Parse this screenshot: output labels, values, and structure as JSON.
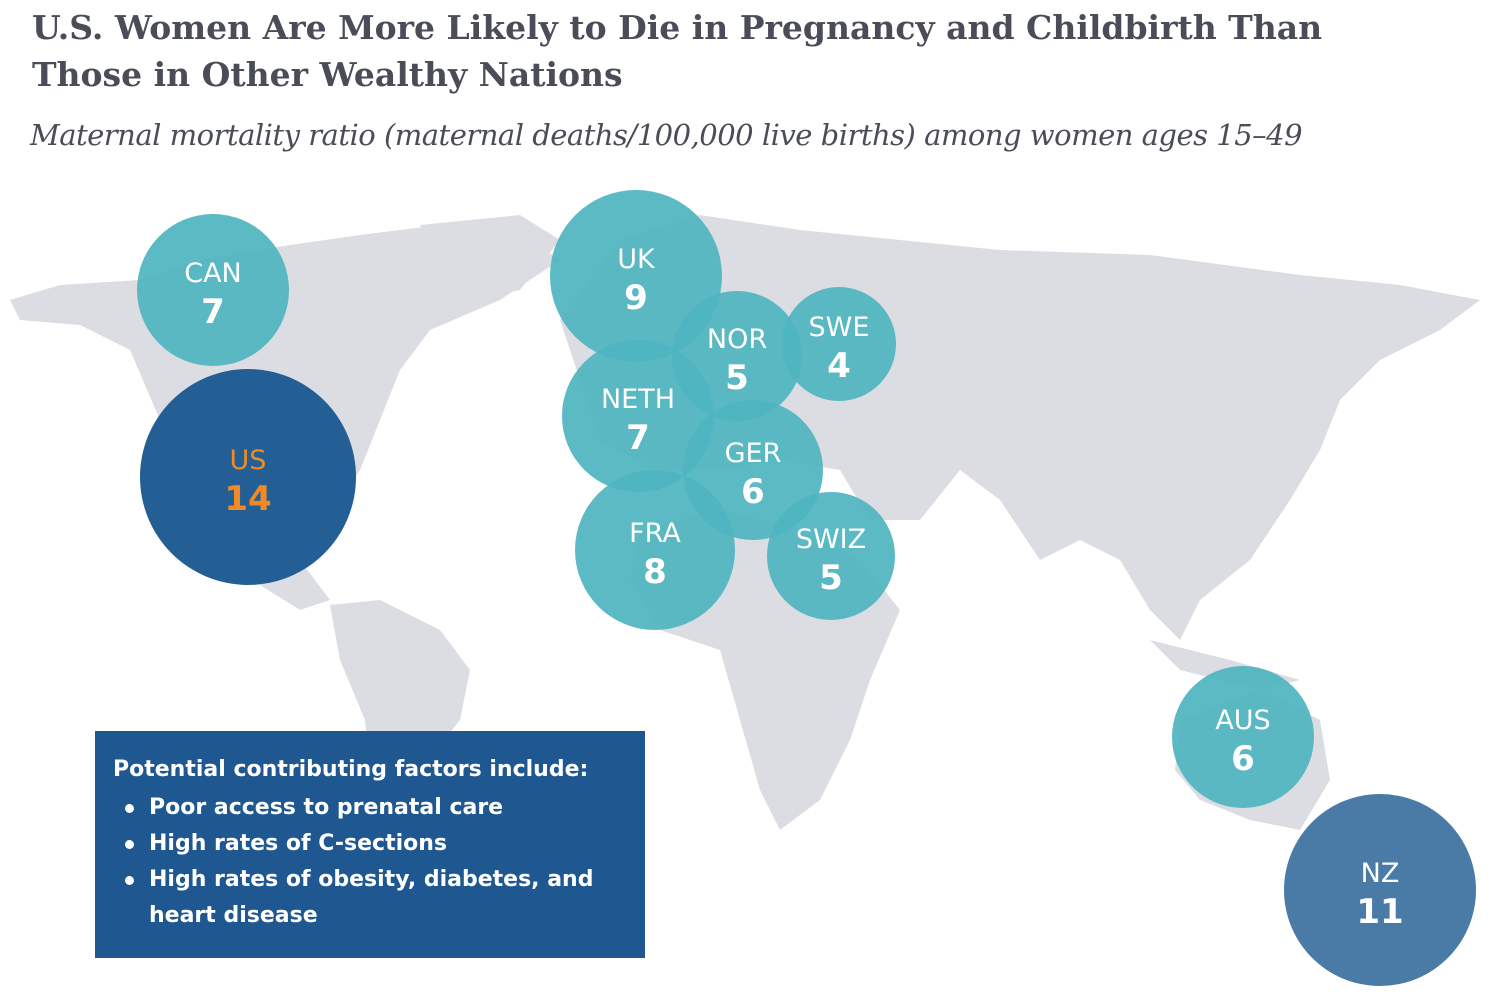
{
  "title": "U.S. Women Are More Likely to Die in Pregnancy and Childbirth Than Those in Other Wealthy Nations",
  "subtitle": "Maternal mortality ratio (maternal deaths/100,000 live births) among women ages 15–49",
  "colors": {
    "us": "#1f5c92",
    "nz": "#3c71a0",
    "others": "#4fb5c0",
    "us_text": "#f08a24",
    "map": "#dcdde3",
    "factors_box": "#1f5790"
  },
  "chart_data": {
    "type": "bubble-map",
    "title": "U.S. Women Are More Likely to Die in Pregnancy and Childbirth Than Those in Other Wealthy Nations",
    "subtitle": "Maternal mortality ratio (maternal deaths/100,000 live births) among women ages 15–49",
    "points": [
      {
        "label": "CAN",
        "value": 7
      },
      {
        "label": "US",
        "value": 14
      },
      {
        "label": "UK",
        "value": 9
      },
      {
        "label": "NOR",
        "value": 5
      },
      {
        "label": "SWE",
        "value": 4
      },
      {
        "label": "NETH",
        "value": 7
      },
      {
        "label": "GER",
        "value": 6
      },
      {
        "label": "FRA",
        "value": 8
      },
      {
        "label": "SWIZ",
        "value": 5
      },
      {
        "label": "AUS",
        "value": 6
      },
      {
        "label": "NZ",
        "value": 11
      }
    ]
  },
  "factors": {
    "heading": "Potential contributing factors include:",
    "items": [
      "Poor access to prenatal care",
      "High rates of C-sections",
      "High rates of obesity, diabetes, and heart disease"
    ]
  }
}
